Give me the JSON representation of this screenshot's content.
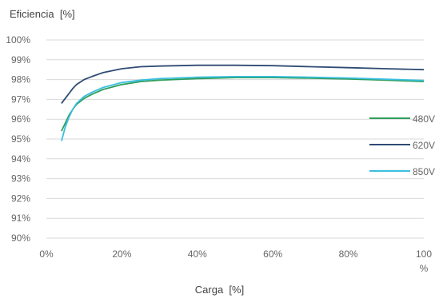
{
  "chart_data": {
    "type": "line",
    "ylabel": "Eficiencia  [%]",
    "xlabel": "Carga  [%]",
    "xlim": [
      0,
      100
    ],
    "ylim": [
      90,
      100
    ],
    "x_ticks": [
      0,
      20,
      40,
      60,
      80,
      100
    ],
    "x_tick_labels": [
      "0%",
      "20%",
      "40%",
      "60%",
      "80%",
      "100"
    ],
    "x_tick_unit": "%",
    "y_ticks": [
      90,
      91,
      92,
      93,
      94,
      95,
      96,
      97,
      98,
      99,
      100
    ],
    "y_tick_labels": [
      "90%",
      "91%",
      "92%",
      "93%",
      "94%",
      "95%",
      "96%",
      "97%",
      "98%",
      "99%",
      "100%"
    ],
    "grid": "horizontal",
    "legend_position": "right",
    "series": [
      {
        "name": "480V",
        "color": "#2e9e5b",
        "x": [
          4,
          5,
          6,
          7,
          8,
          10,
          12,
          15,
          20,
          25,
          30,
          40,
          50,
          60,
          70,
          80,
          90,
          100
        ],
        "y": [
          95.4,
          95.8,
          96.2,
          96.5,
          96.75,
          97.05,
          97.25,
          97.5,
          97.75,
          97.9,
          97.97,
          98.05,
          98.1,
          98.1,
          98.07,
          98.03,
          97.97,
          97.9
        ]
      },
      {
        "name": "620V",
        "color": "#2f4b73",
        "x": [
          4,
          5,
          6,
          7,
          8,
          10,
          12,
          15,
          20,
          25,
          30,
          40,
          50,
          60,
          70,
          80,
          90,
          100
        ],
        "y": [
          96.8,
          97.05,
          97.3,
          97.55,
          97.75,
          98.0,
          98.15,
          98.35,
          98.55,
          98.65,
          98.68,
          98.72,
          98.72,
          98.7,
          98.65,
          98.6,
          98.55,
          98.5
        ]
      },
      {
        "name": "850V",
        "color": "#3bbfe0",
        "x": [
          4,
          5,
          6,
          7,
          8,
          10,
          12,
          15,
          20,
          25,
          30,
          40,
          50,
          60,
          70,
          80,
          90,
          100
        ],
        "y": [
          94.9,
          95.6,
          96.1,
          96.5,
          96.8,
          97.15,
          97.35,
          97.6,
          97.85,
          97.97,
          98.05,
          98.12,
          98.15,
          98.15,
          98.12,
          98.08,
          98.02,
          97.95
        ]
      }
    ]
  }
}
